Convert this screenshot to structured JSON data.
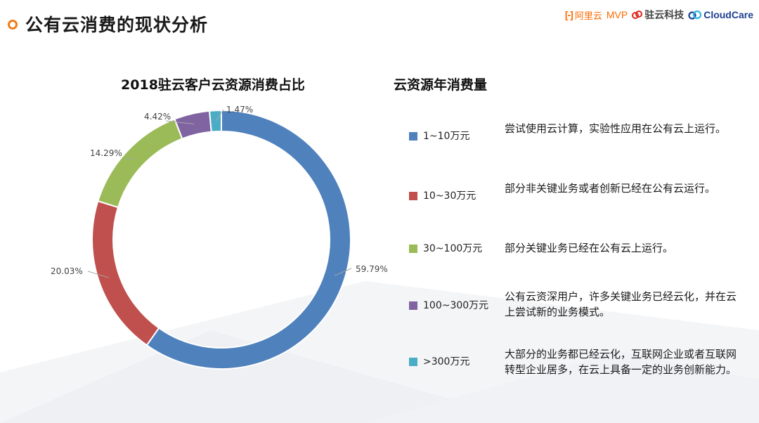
{
  "header": {
    "title": "公有云消费的现状分析",
    "logos": {
      "aliyun_mark": "[-]",
      "aliyun": "阿里云",
      "mvp": "MVP",
      "zhuyun": "驻云科技",
      "cloudcare": "CloudCare"
    }
  },
  "colors": {
    "accent": "#ef7d1a",
    "blue": "#4f81bd",
    "red": "#c0504d",
    "green": "#9bbb59",
    "purple": "#8064a2",
    "cyan": "#4bacc6"
  },
  "chart_data": {
    "type": "pie",
    "subtype": "donut",
    "title": "2018驻云客户云资源消费占比",
    "slices": [
      {
        "label": "1~10万元",
        "value": 59.79,
        "value_label": "59.79%",
        "color": "#4f81bd"
      },
      {
        "label": "10~30万元",
        "value": 20.03,
        "value_label": "20.03%",
        "color": "#c0504d"
      },
      {
        "label": "30~100万元",
        "value": 14.29,
        "value_label": "14.29%",
        "color": "#9bbb59"
      },
      {
        "label": "100~300万元",
        "value": 4.42,
        "value_label": "4.42%",
        "color": "#8064a2"
      },
      {
        "label": ">300万元",
        "value": 1.47,
        "value_label": "1.47%",
        "color": "#4bacc6"
      }
    ],
    "legend_placement": "right"
  },
  "legend": {
    "title": "云资源年消费量",
    "items": [
      {
        "label": "1~10万元",
        "desc": "尝试使用云计算，实验性应用在公有云上运行。"
      },
      {
        "label": "10~30万元",
        "desc": "部分非关键业务或者创新已经在公有云运行。"
      },
      {
        "label": "30~100万元",
        "desc": "部分关键业务已经在公有云上运行。"
      },
      {
        "label": "100~300万元",
        "desc": "公有云资深用户，许多关键业务已经云化，并在云上尝试新的业务模式。"
      },
      {
        "label": ">300万元",
        "desc": "大部分的业务都已经云化，互联网企业或者互联网转型企业居多，在云上具备一定的业务创新能力。"
      }
    ]
  }
}
